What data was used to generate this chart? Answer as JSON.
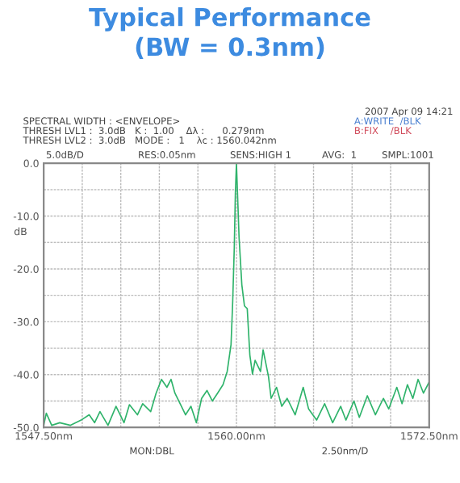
{
  "chart_data": {
    "type": "line",
    "title": "Typical Performance\n(BW = 0.3nm)",
    "ylabel": "dB",
    "annotations": [
      "2007 Apr 09 14:21",
      "SPECTRAL WIDTH : <ENVELOPE>",
      "THRESH LVL1 :  3.0dB   K :  1.00    Δλ :      0.279nm",
      "THRESH LVL2 :  3.0dB   MODE :   1    λc : 1560.042nm",
      "A:WRITE  /BLK",
      "B:FIX    /BLK",
      "5.0dB/D",
      "RES:0.05nm",
      "SENS:HIGH 1",
      "AVG:  1",
      "SMPL:1001",
      "MON:DBL",
      "2.50nm/D"
    ],
    "series": [
      {
        "color": "#2fb36b",
        "x": [
          1547.5,
          1547.67,
          1548.02,
          1548.54,
          1549.24,
          1549.93,
          1550.45,
          1550.8,
          1551.15,
          1551.67,
          1552.19,
          1552.71,
          1553.06,
          1553.58,
          1553.92,
          1554.44,
          1554.79,
          1555.14,
          1555.49,
          1555.76,
          1556.01,
          1556.35,
          1556.7,
          1557.05,
          1557.4,
          1557.74,
          1558.09,
          1558.44,
          1558.78,
          1559.13,
          1559.4,
          1559.65,
          1559.76,
          1559.86,
          1559.93,
          1560.0,
          1560.07,
          1560.17,
          1560.35,
          1560.52,
          1560.7,
          1560.87,
          1561.04,
          1561.21,
          1561.56,
          1561.73,
          1562.08,
          1562.25,
          1562.6,
          1562.94,
          1563.29,
          1563.81,
          1564.33,
          1564.68,
          1565.2,
          1565.72,
          1566.24,
          1566.76,
          1567.1,
          1567.62,
          1567.97,
          1568.49,
          1569.01,
          1569.53,
          1569.88,
          1570.4,
          1570.74,
          1571.09,
          1571.44,
          1571.78,
          1572.13,
          1572.5
        ],
        "values": [
          -49.6,
          -47.3,
          -49.6,
          -49.1,
          -49.6,
          -48.6,
          -47.6,
          -49.1,
          -47.0,
          -49.6,
          -46.0,
          -49.1,
          -45.7,
          -47.6,
          -45.5,
          -47.0,
          -43.5,
          -40.9,
          -42.4,
          -40.9,
          -43.5,
          -45.5,
          -47.6,
          -46.0,
          -49.1,
          -44.5,
          -43.0,
          -45.0,
          -43.5,
          -41.9,
          -39.4,
          -34.3,
          -26.0,
          -16.0,
          -5.7,
          0.0,
          -5.7,
          -14.0,
          -23.0,
          -27.0,
          -27.5,
          -36.3,
          -39.9,
          -37.3,
          -39.4,
          -35.3,
          -40.4,
          -44.5,
          -42.4,
          -46.0,
          -44.5,
          -47.6,
          -42.4,
          -46.5,
          -48.6,
          -45.5,
          -49.1,
          -46.0,
          -48.6,
          -45.0,
          -48.1,
          -44.0,
          -47.6,
          -44.5,
          -46.5,
          -42.4,
          -45.5,
          -41.9,
          -44.5,
          -40.9,
          -43.5,
          -41.4
        ]
      }
    ],
    "xlim": [
      1547.5,
      1572.5
    ],
    "xticks": [
      {
        "value": 1547.5,
        "label": "1547.50nm"
      },
      {
        "value": 1550,
        "label": null
      },
      {
        "value": 1552.5,
        "label": null
      },
      {
        "value": 1555,
        "label": null
      },
      {
        "value": 1557.5,
        "label": null
      },
      {
        "value": 1560,
        "label": "1560.00nm"
      },
      {
        "value": 1562.5,
        "label": null
      },
      {
        "value": 1565,
        "label": null
      },
      {
        "value": 1567.5,
        "label": null
      },
      {
        "value": 1570,
        "label": null
      },
      {
        "value": 1572.5,
        "label": "1572.50nm"
      }
    ],
    "ylim": [
      -50,
      0
    ],
    "yticks": [
      {
        "value": -50,
        "label": "-50.0"
      },
      {
        "value": -45,
        "label": null
      },
      {
        "value": -40,
        "label": "-40.0"
      },
      {
        "value": -35,
        "label": null
      },
      {
        "value": -30,
        "label": "-30.0"
      },
      {
        "value": -25,
        "label": null
      },
      {
        "value": -20,
        "label": "-20.0"
      },
      {
        "value": -15,
        "label": null
      },
      {
        "value": -10,
        "label": "-10.0"
      },
      {
        "value": -5,
        "label": null
      },
      {
        "value": 0,
        "label": "0.0"
      }
    ],
    "grid": true,
    "marker": "none",
    "line_style": "solid",
    "legend": false
  }
}
